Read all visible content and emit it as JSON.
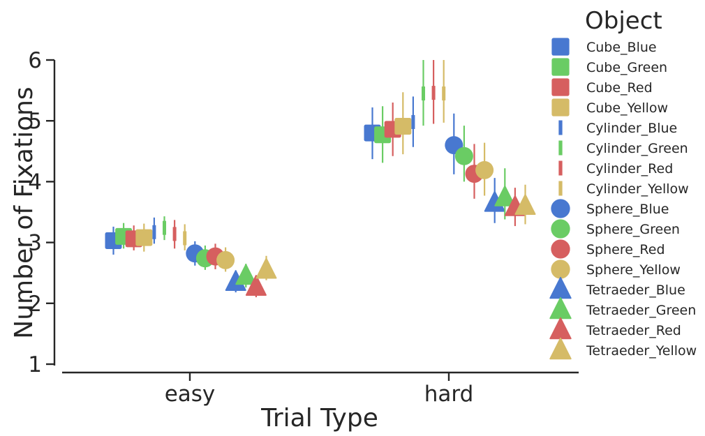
{
  "chart_data": {
    "type": "scatter",
    "title": "",
    "xlabel": "Trial Type",
    "ylabel": "Number of Fixations",
    "categories": [
      "easy",
      "hard"
    ],
    "ylim": [
      1,
      6
    ],
    "yticks": [
      "1",
      "2",
      "3",
      "4",
      "5",
      "6"
    ],
    "grid": false,
    "error_bars": true,
    "legend": {
      "title": "Object",
      "placement": "right"
    },
    "series": [
      {
        "name": "Cube_Blue",
        "color": "#4878d0",
        "marker": "square",
        "values": [
          3.03,
          4.8
        ],
        "ci": [
          [
            2.8,
            3.26
          ],
          [
            4.37,
            5.22
          ]
        ]
      },
      {
        "name": "Cube_Green",
        "color": "#6acc64",
        "marker": "square",
        "values": [
          3.1,
          4.77
        ],
        "ci": [
          [
            2.9,
            3.32
          ],
          [
            4.31,
            5.24
          ]
        ]
      },
      {
        "name": "Cube_Red",
        "color": "#d65f5f",
        "marker": "square",
        "values": [
          3.06,
          4.86
        ],
        "ci": [
          [
            2.87,
            3.28
          ],
          [
            4.42,
            5.3
          ]
        ]
      },
      {
        "name": "Cube_Yellow",
        "color": "#d5bb67",
        "marker": "square",
        "values": [
          3.08,
          4.91
        ],
        "ci": [
          [
            2.85,
            3.31
          ],
          [
            4.45,
            5.47
          ]
        ]
      },
      {
        "name": "Cylinder_Blue",
        "color": "#4878d0",
        "marker": "vline",
        "values": [
          3.17,
          4.98
        ],
        "ci": [
          [
            2.98,
            3.41
          ],
          [
            4.57,
            5.4
          ]
        ]
      },
      {
        "name": "Cylinder_Green",
        "color": "#6acc64",
        "marker": "vline",
        "values": [
          3.24,
          5.45
        ],
        "ci": [
          [
            3.04,
            3.43
          ],
          [
            4.92,
            6.0
          ]
        ]
      },
      {
        "name": "Cylinder_Red",
        "color": "#d65f5f",
        "marker": "vline",
        "values": [
          3.14,
          5.46
        ],
        "ci": [
          [
            2.9,
            3.37
          ],
          [
            4.95,
            6.0
          ]
        ]
      },
      {
        "name": "Cylinder_Yellow",
        "color": "#d5bb67",
        "marker": "vline",
        "values": [
          3.07,
          5.45
        ],
        "ci": [
          [
            2.87,
            3.3
          ],
          [
            4.97,
            6.0
          ]
        ]
      },
      {
        "name": "Sphere_Blue",
        "color": "#4878d0",
        "marker": "circle",
        "values": [
          2.82,
          4.6
        ],
        "ci": [
          [
            2.62,
            3.02
          ],
          [
            4.12,
            5.12
          ]
        ]
      },
      {
        "name": "Sphere_Green",
        "color": "#6acc64",
        "marker": "circle",
        "values": [
          2.74,
          4.42
        ],
        "ci": [
          [
            2.55,
            2.95
          ],
          [
            4.0,
            4.92
          ]
        ]
      },
      {
        "name": "Sphere_Red",
        "color": "#d65f5f",
        "marker": "circle",
        "values": [
          2.77,
          4.13
        ],
        "ci": [
          [
            2.56,
            2.98
          ],
          [
            3.72,
            4.62
          ]
        ]
      },
      {
        "name": "Sphere_Yellow",
        "color": "#d5bb67",
        "marker": "circle",
        "values": [
          2.71,
          4.19
        ],
        "ci": [
          [
            2.52,
            2.92
          ],
          [
            3.77,
            4.64
          ]
        ]
      },
      {
        "name": "Tetraeder_Blue",
        "color": "#4878d0",
        "marker": "triangle",
        "values": [
          2.35,
          3.65
        ],
        "ci": [
          [
            2.18,
            2.54
          ],
          [
            3.32,
            4.06
          ]
        ]
      },
      {
        "name": "Tetraeder_Green",
        "color": "#6acc64",
        "marker": "triangle",
        "values": [
          2.45,
          3.74
        ],
        "ci": [
          [
            2.26,
            2.65
          ],
          [
            3.38,
            4.22
          ]
        ]
      },
      {
        "name": "Tetraeder_Red",
        "color": "#d65f5f",
        "marker": "triangle",
        "values": [
          2.27,
          3.58
        ],
        "ci": [
          [
            2.1,
            2.46
          ],
          [
            3.27,
            3.9
          ]
        ]
      },
      {
        "name": "Tetraeder_Yellow",
        "color": "#d5bb67",
        "marker": "triangle",
        "values": [
          2.55,
          3.6
        ],
        "ci": [
          [
            2.38,
            2.78
          ],
          [
            3.3,
            3.95
          ]
        ]
      }
    ]
  }
}
